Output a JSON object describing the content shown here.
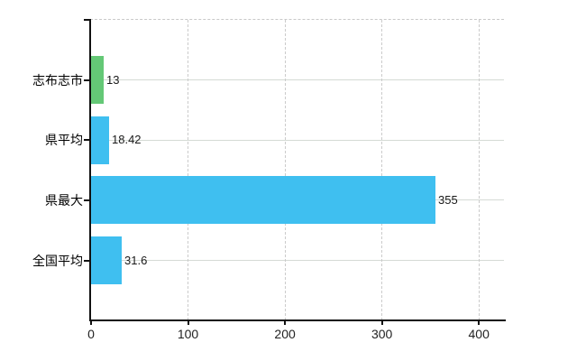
{
  "chart_data": {
    "type": "bar",
    "orientation": "horizontal",
    "title": "",
    "xlabel": "",
    "ylabel": "",
    "categories": [
      "志布志市",
      "県平均",
      "県最大",
      "全国平均"
    ],
    "series": [
      {
        "name": "value",
        "values": [
          13,
          18.42,
          355,
          31.6
        ]
      }
    ],
    "value_labels": [
      "13",
      "18.42",
      "355",
      "31.6"
    ],
    "bar_colors": [
      "#64C876",
      "#3FBFF0",
      "#3FBFF0",
      "#3FBFF0"
    ],
    "x_tick_labels": [
      "0",
      "100",
      "200",
      "300",
      "400"
    ],
    "x_tick_values": [
      0,
      100,
      200,
      300,
      400
    ],
    "xlim": [
      0,
      427
    ],
    "grid": {
      "vertical_gridlines": "dashed",
      "horizontal_gridlines": "solid",
      "top_border": "dashed"
    },
    "legend": false
  },
  "colors": {
    "highlight_green": "#64C876",
    "bar_blue": "#3FBFF0",
    "grid_solid": "#D5DAD5",
    "grid_dashed": "#CBCBCB",
    "axis": "#111111",
    "tick_text": "#222222",
    "value_text": "#1A1A1A",
    "category_text": "#000000",
    "background": "#FFFFFF"
  }
}
